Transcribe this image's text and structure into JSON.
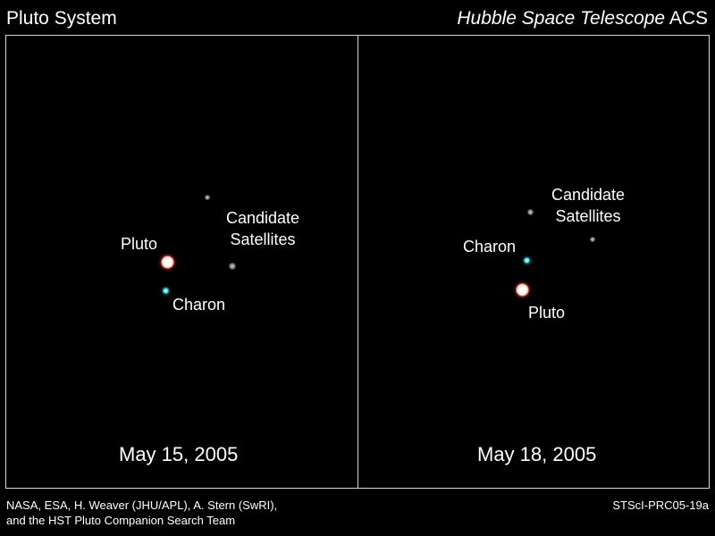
{
  "header": {
    "title": "Pluto System",
    "instrument_italic": "Hubble Space Telescope",
    "instrument_suffix": "ACS"
  },
  "panels": [
    {
      "date": "May 15, 2005",
      "labels": {
        "pluto": "Pluto",
        "charon": "Charon",
        "candidate_line1": "Candidate",
        "candidate_line2": "Satellites"
      }
    },
    {
      "date": "May 18, 2005",
      "labels": {
        "pluto": "Pluto",
        "charon": "Charon",
        "candidate_line1": "Candidate",
        "candidate_line2": "Satellites"
      }
    }
  ],
  "footer": {
    "credit_line1": "NASA, ESA, H. Weaver (JHU/APL), A. Stern (SwRI),",
    "credit_line2": "and the HST Pluto Companion Search Team",
    "release_id": "STScI-PRC05-19a"
  },
  "colors": {
    "background": "#000000",
    "text": "#ffffff",
    "frame": "#d8d8d8",
    "pluto_halo": "#be281e",
    "charon": "#4fe0e8",
    "candidate_satellite": "#9a9a9a"
  }
}
